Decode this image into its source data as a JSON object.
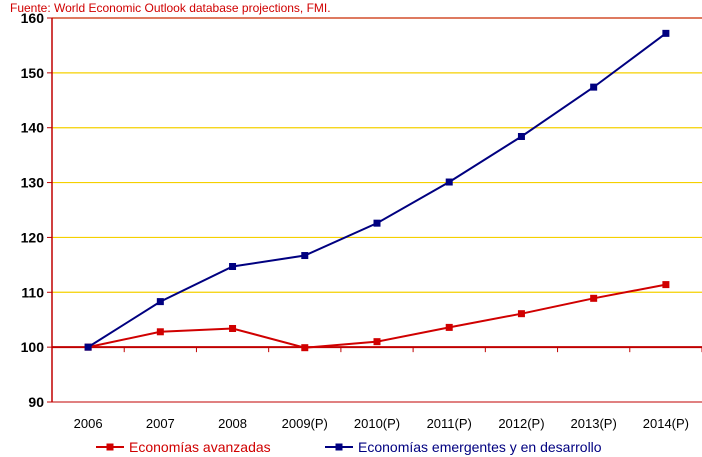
{
  "source_note": "Fuente: World Economic Outlook database projections, FMI.",
  "colors": {
    "advanced": "#d00000",
    "emerging": "#000080",
    "grid": "#f5d000",
    "frame": "#c00000"
  },
  "chart_data": {
    "type": "line",
    "categories": [
      "2006",
      "2007",
      "2008",
      "2009(P)",
      "2010(P)",
      "2011(P)",
      "2012(P)",
      "2013(P)",
      "2014(P)"
    ],
    "ylim": [
      90,
      160
    ],
    "yticks": [
      "90",
      "100",
      "110",
      "120",
      "130",
      "140",
      "150",
      "160"
    ],
    "baseline": 100,
    "grid": true,
    "legend_position": "bottom",
    "series": [
      {
        "name": "Economías avanzadas",
        "color": "#d00000",
        "values": [
          100,
          102.8,
          103.4,
          99.9,
          101.0,
          103.6,
          106.1,
          108.9,
          111.4
        ]
      },
      {
        "name": "Economías emergentes y en desarrollo",
        "color": "#000080",
        "values": [
          100,
          108.3,
          114.7,
          116.7,
          122.6,
          130.1,
          138.4,
          147.4,
          157.2
        ]
      }
    ]
  }
}
